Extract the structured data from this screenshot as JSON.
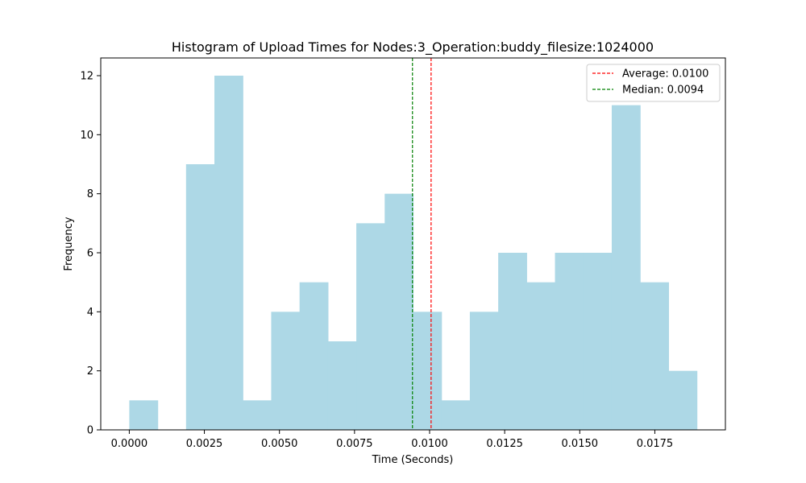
{
  "chart_data": {
    "type": "bar",
    "title": "Histogram of Upload Times for Nodes:3_Operation:buddy_filesize:1024000",
    "xlabel": "Time (Seconds)",
    "ylabel": "Frequency",
    "xlim": [
      -0.00095,
      0.01985
    ],
    "ylim": [
      0,
      12.6
    ],
    "bin_edges": [
      0.0,
      0.000945,
      0.00189,
      0.002835,
      0.00378,
      0.004725,
      0.00567,
      0.006615,
      0.00756,
      0.008505,
      0.00945,
      0.010395,
      0.01134,
      0.012285,
      0.01323,
      0.014175,
      0.01512,
      0.016065,
      0.01701,
      0.017955,
      0.0189
    ],
    "values": [
      1,
      0,
      9,
      12,
      1,
      4,
      5,
      3,
      7,
      8,
      4,
      1,
      4,
      6,
      5,
      6,
      6,
      11,
      5,
      2
    ],
    "bar_color": "#add8e6",
    "x_ticks": [
      0.0,
      0.0025,
      0.005,
      0.0075,
      0.01,
      0.0125,
      0.015,
      0.0175
    ],
    "x_tick_labels": [
      "0.0000",
      "0.0025",
      "0.0050",
      "0.0075",
      "0.0100",
      "0.0125",
      "0.0150",
      "0.0175"
    ],
    "y_ticks": [
      0,
      2,
      4,
      6,
      8,
      10,
      12
    ],
    "y_tick_labels": [
      "0",
      "2",
      "4",
      "6",
      "8",
      "10",
      "12"
    ],
    "grid": false,
    "reference_lines": [
      {
        "name": "Average: 0.0100",
        "x": 0.01005,
        "color": "#ff0000",
        "style": "dashed"
      },
      {
        "name": "Median: 0.0094",
        "x": 0.00943,
        "color": "#008000",
        "style": "dashed"
      }
    ],
    "legend_position": "top-right"
  }
}
